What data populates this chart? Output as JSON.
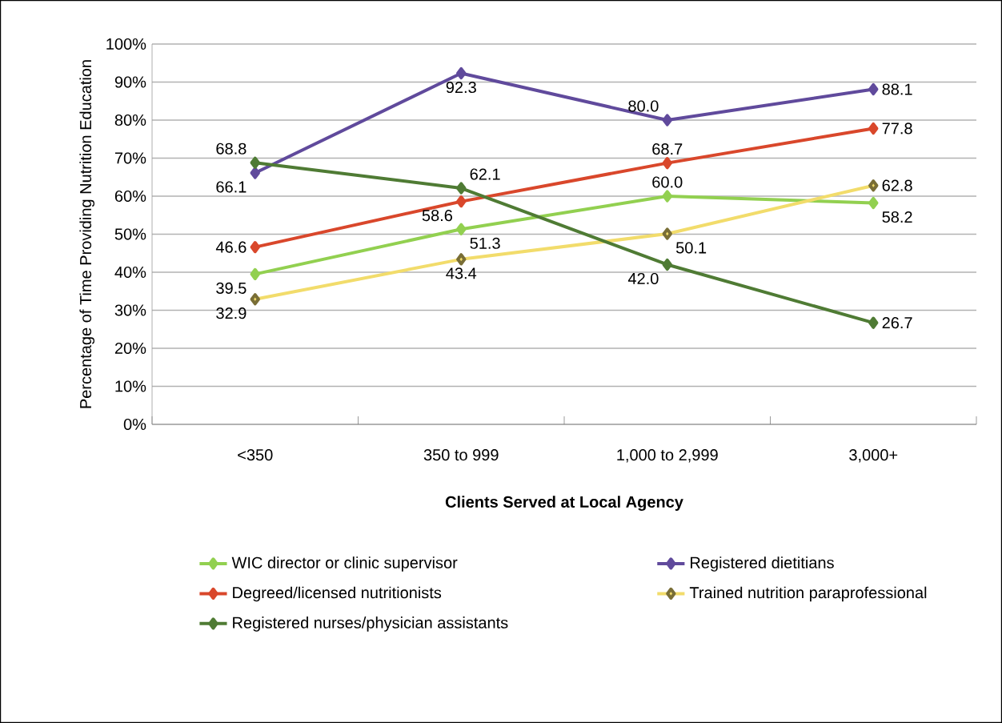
{
  "chart_data": {
    "type": "line",
    "xlabel": "Clients Served at Local Agency",
    "ylabel": "Percentage of Time Providing Nutrition Education",
    "categories": [
      "<350",
      "350 to 999",
      "1,000 to 2,999",
      "3,000+"
    ],
    "series": [
      {
        "name": "WIC director or clinic supervisor",
        "color": "#92d050",
        "values": [
          39.5,
          51.3,
          60.0,
          58.2
        ],
        "value_labels": [
          "39.5",
          "51.3",
          "60.0",
          "58.2"
        ]
      },
      {
        "name": "Registered dietitians",
        "color": "#604a9c",
        "values": [
          66.1,
          92.3,
          80.0,
          88.1
        ],
        "value_labels": [
          "66.1",
          "92.3",
          "80.0",
          "88.1"
        ]
      },
      {
        "name": "Degreed/licensed nutritionists",
        "color": "#d9472b",
        "values": [
          46.6,
          58.6,
          68.7,
          77.8
        ],
        "value_labels": [
          "46.6",
          "58.6",
          "68.7",
          "77.8"
        ]
      },
      {
        "name": "Trained nutrition paraprofessional",
        "color": "#f2dc6b",
        "values": [
          32.9,
          43.4,
          50.1,
          62.8
        ],
        "value_labels": [
          "32.9",
          "43.4",
          "50.1",
          "62.8"
        ]
      },
      {
        "name": "Registered nurses/physician assistants",
        "color": "#4f7b34",
        "values": [
          68.8,
          62.1,
          42.0,
          26.7
        ],
        "value_labels": [
          "68.8",
          "62.1",
          "42.0",
          "26.7"
        ]
      }
    ],
    "ylim": [
      0,
      100
    ],
    "yticks": [
      {
        "value": 0,
        "label": "0%"
      },
      {
        "value": 10,
        "label": "10%"
      },
      {
        "value": 20,
        "label": "20%"
      },
      {
        "value": 30,
        "label": "30%"
      },
      {
        "value": 40,
        "label": "40%"
      },
      {
        "value": 50,
        "label": "50%"
      },
      {
        "value": 60,
        "label": "60%"
      },
      {
        "value": 70,
        "label": "70%"
      },
      {
        "value": 80,
        "label": "80%"
      },
      {
        "value": 90,
        "label": "90%"
      },
      {
        "value": 100,
        "label": "100%"
      }
    ],
    "grid": "y",
    "legend": "bottom",
    "marker": "diamond",
    "line_style": "solid"
  }
}
